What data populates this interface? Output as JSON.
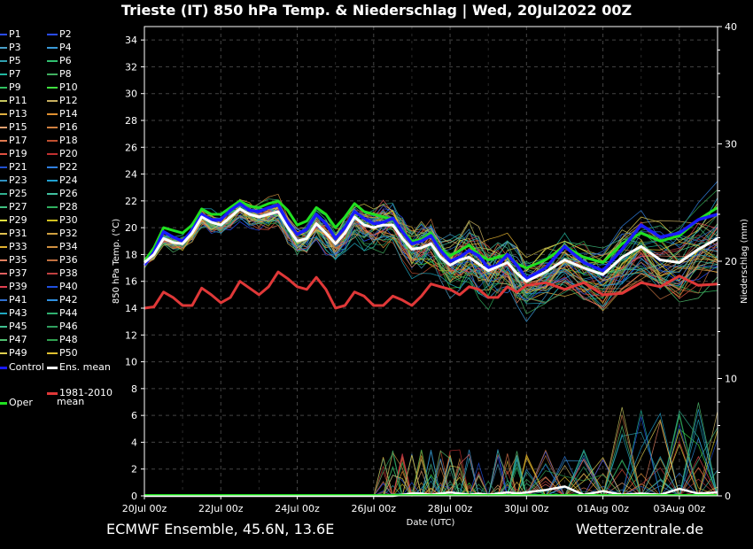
{
  "title": "Trieste  (IT)  850 hPa Temp. & Niederschlag | Wed, 20Jul2022 00Z",
  "footer_left": "ECMWF Ensemble, 45.6N, 13.6E",
  "footer_right": "Wetterzentrale.de",
  "legend": {
    "members": [
      "P1",
      "P2",
      "P3",
      "P4",
      "P5",
      "P6",
      "P7",
      "P8",
      "P9",
      "P10",
      "P11",
      "P12",
      "P13",
      "P14",
      "P15",
      "P16",
      "P17",
      "P18",
      "P19",
      "P20",
      "P21",
      "P22",
      "P23",
      "P24",
      "P25",
      "P26",
      "P27",
      "P28",
      "P29",
      "P30",
      "P31",
      "P32",
      "P33",
      "P34",
      "P35",
      "P36",
      "P37",
      "P38",
      "P39",
      "P40",
      "P41",
      "P42",
      "P43",
      "P44",
      "P45",
      "P46",
      "P47",
      "P48",
      "P49",
      "P50"
    ],
    "member_colors": [
      "#2a4cff",
      "#2a4cff",
      "#4aa0c8",
      "#3a9ad8",
      "#2fa0b0",
      "#30c070",
      "#20b8a0",
      "#40b060",
      "#30c060",
      "#40e040",
      "#c8c860",
      "#c8b060",
      "#e0b040",
      "#e09030",
      "#e0a070",
      "#d08040",
      "#e07a50",
      "#c05030",
      "#e05040",
      "#c03030",
      "#2050d0",
      "#3080e0",
      "#3090c0",
      "#20a0d0",
      "#30b090",
      "#40c0a0",
      "#40c080",
      "#30b060",
      "#e0e040",
      "#d0c020",
      "#e0c050",
      "#d0a040",
      "#e0b030",
      "#d09040",
      "#e08060",
      "#c07040",
      "#e06060",
      "#c04040",
      "#e04050",
      "#2050e0",
      "#3070d0",
      "#3090e0",
      "#20a8c0",
      "#30b070",
      "#40c090",
      "#30a060",
      "#50c070",
      "#30a050",
      "#e0d050",
      "#e0c030"
    ],
    "control": "Control",
    "ens_mean": "Ens. mean",
    "oper": "Oper",
    "clim_line1": "1981-2010",
    "clim_line2": "mean"
  },
  "colors": {
    "control": "#1a1aff",
    "ens_mean": "#ffffff",
    "oper": "#20e020",
    "climate": "#e03838",
    "background": "#000000",
    "grid": "#444444"
  },
  "chart_data": {
    "type": "line",
    "xlabel": "Date (UTC)",
    "ylabel_left": "850 hPa Temp. (°C)",
    "ylabel_right": "Niederschlag (mm)",
    "x_ticks": [
      "20Jul 00z",
      "22Jul 00z",
      "24Jul 00z",
      "26Jul 00z",
      "28Jul 00z",
      "30Jul 00z",
      "01Aug 00z",
      "03Aug 00z"
    ],
    "x_range_days": [
      0,
      15
    ],
    "y_left_range": [
      0,
      35
    ],
    "y_left_ticks": [
      0,
      2,
      4,
      6,
      8,
      10,
      12,
      14,
      16,
      18,
      20,
      22,
      24,
      26,
      28,
      30,
      32,
      34
    ],
    "y_right_ticks": [
      0,
      10,
      20,
      30,
      40
    ],
    "y_right_tick_labels": [
      "0",
      "10",
      "20",
      "30",
      "40"
    ],
    "grid": true,
    "x_days": [
      0,
      0.25,
      0.5,
      0.75,
      1,
      1.25,
      1.5,
      1.75,
      2,
      2.25,
      2.5,
      2.75,
      3,
      3.25,
      3.5,
      3.75,
      4,
      4.25,
      4.5,
      4.75,
      5,
      5.25,
      5.5,
      5.75,
      6,
      6.25,
      6.5,
      6.75,
      7,
      7.25,
      7.5,
      7.75,
      8,
      8.25,
      8.5,
      8.75,
      9,
      9.25,
      9.5,
      9.75,
      10,
      10.5,
      11,
      11.5,
      12,
      12.5,
      13,
      13.5,
      14,
      14.5,
      15
    ],
    "series": [
      {
        "name": "1981-2010 mean",
        "values": [
          14.0,
          14.1,
          15.2,
          14.8,
          14.2,
          14.2,
          15.5,
          15.0,
          14.4,
          14.8,
          16.0,
          15.5,
          15.0,
          15.6,
          16.7,
          16.2,
          15.6,
          15.4,
          16.3,
          15.4,
          14.0,
          14.2,
          15.2,
          14.9,
          14.2,
          14.2,
          14.9,
          14.6,
          14.2,
          14.9,
          15.8,
          15.6,
          15.4,
          15.0,
          15.6,
          15.4,
          14.8,
          14.8,
          15.6,
          15.2,
          15.7,
          15.9,
          15.4,
          15.9,
          15.0,
          15.1,
          15.9,
          15.6,
          16.4,
          15.7,
          15.8
        ]
      },
      {
        "name": "Ens. mean",
        "values": [
          17.4,
          18.0,
          19.2,
          18.9,
          18.8,
          19.6,
          20.8,
          20.4,
          20.2,
          20.8,
          21.4,
          21.0,
          20.8,
          21.0,
          21.2,
          20.0,
          19.0,
          19.2,
          20.3,
          19.6,
          18.8,
          19.6,
          20.8,
          20.2,
          20.0,
          20.2,
          20.2,
          19.2,
          18.4,
          18.5,
          18.8,
          17.8,
          17.2,
          17.6,
          17.8,
          17.3,
          16.8,
          17.1,
          17.4,
          16.6,
          16.0,
          16.7,
          17.6,
          17.0,
          16.5,
          17.8,
          18.6,
          17.6,
          17.4,
          18.4,
          19.2
        ]
      },
      {
        "name": "Control",
        "values": [
          17.2,
          18.2,
          19.7,
          19.3,
          19.0,
          19.8,
          21.0,
          20.6,
          20.6,
          21.3,
          21.8,
          21.3,
          21.2,
          21.5,
          21.7,
          20.4,
          19.5,
          19.9,
          21.0,
          20.3,
          19.2,
          20.0,
          21.2,
          20.7,
          20.3,
          20.4,
          20.7,
          19.7,
          18.8,
          19.0,
          19.4,
          18.3,
          17.5,
          17.8,
          18.3,
          17.9,
          17.0,
          17.2,
          18.0,
          17.2,
          16.2,
          17.0,
          18.6,
          17.4,
          16.8,
          18.4,
          20.2,
          19.3,
          19.6,
          20.6,
          21.0
        ]
      },
      {
        "name": "Oper",
        "values": [
          17.5,
          18.5,
          20.0,
          19.8,
          19.6,
          20.2,
          21.4,
          21.0,
          21.0,
          21.5,
          22.0,
          21.6,
          21.5,
          21.8,
          22.0,
          21.3,
          20.2,
          20.5,
          21.5,
          21.0,
          20.0,
          20.8,
          21.8,
          21.2,
          21.0,
          20.8,
          20.6,
          19.8,
          19.0,
          19.1,
          19.6,
          18.4,
          17.9,
          18.3,
          18.7,
          18.0,
          17.6,
          17.8,
          18.0,
          17.3,
          17.0,
          17.6,
          18.6,
          17.8,
          17.4,
          18.8,
          19.6,
          19.0,
          19.4,
          20.6,
          21.5
        ]
      }
    ],
    "precip_series_mm": [
      {
        "name": "Ens. mean",
        "values": [
          0,
          0,
          0,
          0,
          0,
          0,
          0,
          0,
          0,
          0,
          0,
          0,
          0,
          0,
          0,
          0,
          0,
          0,
          0,
          0,
          0,
          0,
          0,
          0,
          0,
          0,
          0,
          0.1,
          0.2,
          0.2,
          0.1,
          0.2,
          0.3,
          0.2,
          0.1,
          0.2,
          0.1,
          0.2,
          0.3,
          0.2,
          0.3,
          0.5,
          0.8,
          0.1,
          0.4,
          0.1,
          0.2,
          0.1,
          0.6,
          0.2,
          0.3
        ]
      }
    ]
  }
}
